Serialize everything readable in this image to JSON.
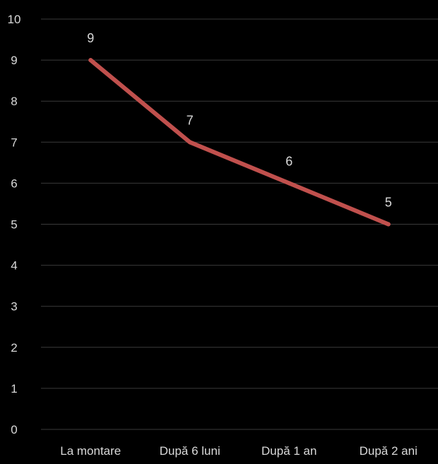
{
  "chart_data": {
    "type": "line",
    "categories": [
      "La montare",
      "După 6 luni",
      "După 1 an",
      "După 2 ani"
    ],
    "series": [
      {
        "values": [
          9,
          7,
          6,
          5
        ],
        "color": "#c0504d",
        "data_labels": [
          "9",
          "7",
          "6",
          "5"
        ]
      }
    ],
    "y_ticks": [
      "0",
      "1",
      "2",
      "3",
      "4",
      "5",
      "6",
      "7",
      "8",
      "9",
      "10"
    ],
    "ylim": [
      0,
      10
    ],
    "grid": true,
    "legend": "none",
    "colors": {
      "background": "#000000",
      "gridline": "#3a3a3a",
      "text": "#d9d9d9"
    }
  }
}
